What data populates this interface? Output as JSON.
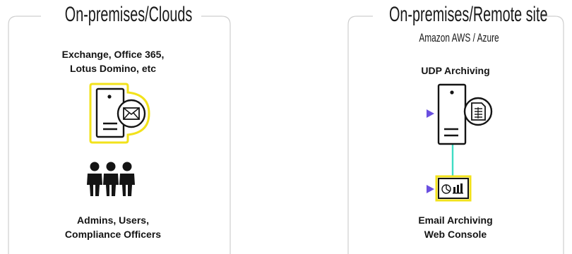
{
  "left_panel": {
    "title": "On-premises/Clouds",
    "mail_server_label": [
      "Exchange, Office 365,",
      "Lotus Domino, etc"
    ],
    "users_label": [
      "Admins, Users,",
      "Compliance Officers"
    ]
  },
  "right_panel": {
    "title": "On-premises/Remote site",
    "subtitle": "Amazon AWS / Azure",
    "archive_label": "UDP Archiving",
    "console_label": [
      "Email Archiving",
      "Web Console"
    ]
  },
  "colors": {
    "panel_border": "#cfcfcf",
    "highlight_yellow": "#f2e21b",
    "line_start": "#3fdcc4",
    "line_end": "#6a4fe0",
    "icon_stroke": "#141414"
  },
  "icons": [
    "mail-server-icon",
    "envelope-icon",
    "users-icon",
    "archive-server-icon",
    "document-icon",
    "web-console-icon",
    "pie-chart-icon",
    "bar-chart-icon"
  ]
}
